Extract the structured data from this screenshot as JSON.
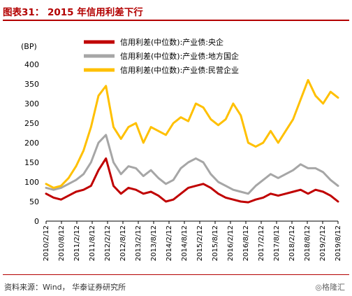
{
  "header": {
    "title": "图表31： 2015 年信用利差下行"
  },
  "footer": {
    "source": "资料来源：Wind， 华泰证券研究所",
    "watermark": "◎格隆汇"
  },
  "chart_data": {
    "type": "line",
    "ylabel": "(BP)",
    "ylim": [
      0,
      400
    ],
    "yticks": [
      0,
      50,
      100,
      150,
      200,
      250,
      300,
      350,
      400
    ],
    "xticks": [
      "2010/2/12",
      "2010/8/12",
      "2011/2/12",
      "2011/8/12",
      "2012/2/12",
      "2012/8/12",
      "2013/2/12",
      "2013/8/12",
      "2014/2/12",
      "2014/8/12",
      "2015/2/12",
      "2015/8/12",
      "2016/2/12",
      "2016/8/12",
      "2017/2/12",
      "2017/8/12",
      "2018/2/12",
      "2018/8/12",
      "2019/2/12",
      "2019/8/12"
    ],
    "x": [
      "2010/2",
      "2010/5",
      "2010/8",
      "2010/11",
      "2011/2",
      "2011/5",
      "2011/8",
      "2011/11",
      "2012/2",
      "2012/5",
      "2012/8",
      "2012/11",
      "2013/2",
      "2013/5",
      "2013/8",
      "2013/11",
      "2014/2",
      "2014/5",
      "2014/8",
      "2014/11",
      "2015/2",
      "2015/5",
      "2015/8",
      "2015/11",
      "2016/2",
      "2016/5",
      "2016/8",
      "2016/11",
      "2017/2",
      "2017/5",
      "2017/8",
      "2017/11",
      "2018/2",
      "2018/5",
      "2018/8",
      "2018/11",
      "2019/2",
      "2019/5",
      "2019/8",
      "2019/11"
    ],
    "series": [
      {
        "name": "信用利差(中位数):产业债:央企",
        "color": "#c00000",
        "values": [
          70,
          60,
          55,
          65,
          75,
          80,
          90,
          130,
          160,
          90,
          70,
          85,
          80,
          70,
          75,
          65,
          50,
          55,
          70,
          85,
          90,
          95,
          85,
          70,
          60,
          55,
          50,
          48,
          55,
          60,
          70,
          65,
          70,
          75,
          80,
          70,
          80,
          75,
          65,
          50
        ]
      },
      {
        "name": "信用利差(中位数):产业债:地方国企",
        "color": "#a6a6a6",
        "values": [
          85,
          80,
          85,
          95,
          105,
          120,
          150,
          200,
          220,
          150,
          120,
          140,
          135,
          115,
          130,
          110,
          95,
          105,
          135,
          150,
          160,
          150,
          120,
          100,
          90,
          80,
          75,
          70,
          90,
          105,
          120,
          110,
          120,
          130,
          145,
          135,
          135,
          125,
          105,
          90
        ]
      },
      {
        "name": "信用利差(中位数):产业债:民营企业",
        "color": "#ffc000",
        "values": [
          95,
          85,
          90,
          110,
          140,
          180,
          240,
          320,
          345,
          240,
          210,
          240,
          250,
          200,
          240,
          230,
          220,
          250,
          265,
          255,
          300,
          290,
          260,
          245,
          260,
          300,
          270,
          200,
          190,
          200,
          230,
          200,
          230,
          260,
          310,
          360,
          320,
          300,
          330,
          315
        ]
      }
    ],
    "legend_position": "top-center",
    "grid": false
  }
}
